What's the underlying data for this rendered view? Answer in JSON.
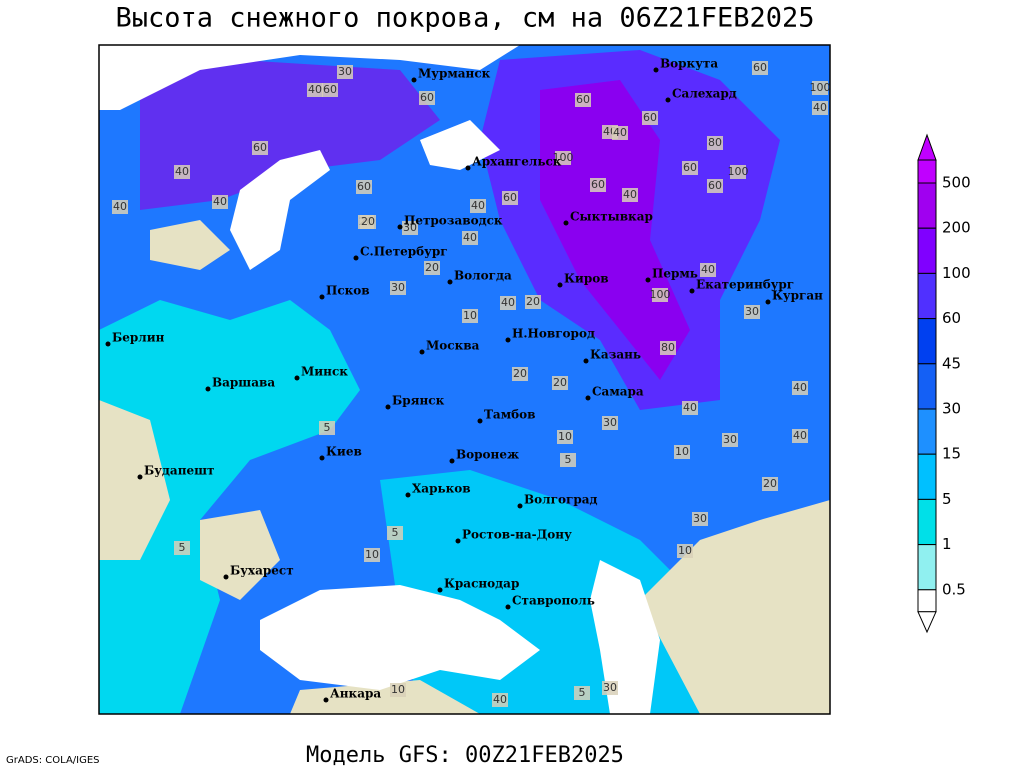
{
  "header": {
    "title": "Высота снежного покрова, см на 06Z21FEB2025"
  },
  "footer": {
    "model": "Модель GFS: 00Z21FEB2025",
    "credit": "GrADS: COLA/IGES"
  },
  "legend": {
    "labels": [
      "500",
      "200",
      "100",
      "60",
      "45",
      "30",
      "15",
      "5",
      "1",
      "0.5"
    ],
    "colors": [
      "#c000ff",
      "#a000f0",
      "#8000ff",
      "#5030ff",
      "#0040f0",
      "#1460f5",
      "#1e90ff",
      "#00c0ff",
      "#00e0e8",
      "#90f0f0",
      "#ffffff"
    ]
  },
  "cities": [
    "Мурманск",
    "Воркута",
    "Салехард",
    "Архангельск",
    "Сыктывкар",
    "Петрозаводск",
    "С.Петербург",
    "Вологда",
    "Киров",
    "Пермь",
    "Екатеринбург",
    "Курган",
    "Псков",
    "Берлин",
    "Минск",
    "Москва",
    "Н.Новгород",
    "Казань",
    "Варшава",
    "Брянск",
    "Тамбов",
    "Самара",
    "Киев",
    "Воронеж",
    "Будапешт",
    "Харьков",
    "Волгоград",
    "Ростов-на-Дону",
    "Бухарест",
    "Краснодар",
    "Ставрополь",
    "Анкара"
  ],
  "contour_labels": [
    "30",
    "40",
    "60",
    "60",
    "60",
    "40",
    "40",
    "40",
    "60",
    "40",
    "20",
    "60",
    "30",
    "40",
    "60",
    "40",
    "100",
    "40",
    "60",
    "80",
    "60",
    "100",
    "60",
    "60",
    "60",
    "100",
    "40",
    "40",
    "20",
    "30",
    "20",
    "40",
    "20",
    "80",
    "100",
    "40",
    "30",
    "40",
    "20",
    "10",
    "20",
    "30",
    "5",
    "10",
    "40",
    "30",
    "10",
    "5",
    "20",
    "30",
    "10",
    "5",
    "5",
    "10",
    "40",
    "10",
    "5",
    "30",
    "40"
  ]
}
